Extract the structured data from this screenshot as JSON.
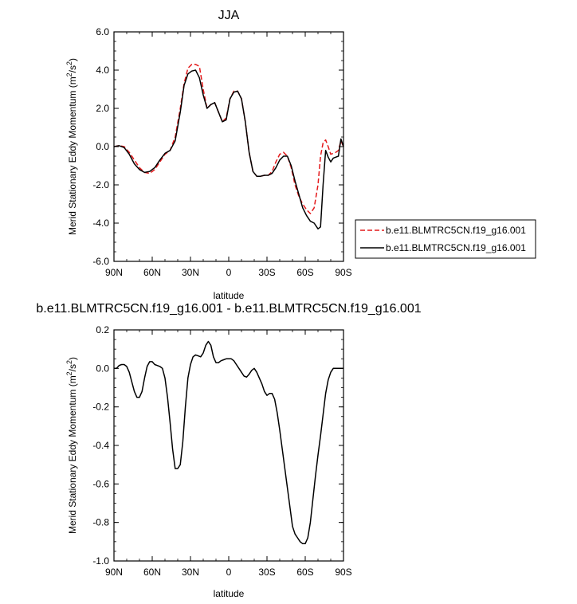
{
  "chart_data": [
    {
      "type": "line",
      "title": "JJA",
      "xlabel": "latitude",
      "ylabel": "Merid Stationary Eddy Momentum (m",
      "ylabel_sup": "2",
      "ylabel_mid": "/s",
      "ylabel_sup2": "2",
      "ylabel_end": ")",
      "xlim": [
        90,
        -90
      ],
      "ylim": [
        -6.0,
        6.0
      ],
      "x_ticks": [
        90,
        60,
        30,
        0,
        -30,
        -60,
        -90
      ],
      "x_tick_labels": [
        "90N",
        "60N",
        "30N",
        "0",
        "30S",
        "60S",
        "90S"
      ],
      "y_ticks": [
        -6.0,
        -4.0,
        -2.0,
        0.0,
        2.0,
        4.0,
        6.0
      ],
      "y_tick_labels": [
        "-6.0",
        "-4.0",
        "-2.0",
        "0.0",
        "2.0",
        "4.0",
        "6.0"
      ],
      "legend": {
        "placement": "right",
        "entries": [
          "b.e11.BLMTRC5CN.f19_g16.001",
          "b.e11.BLMTRC5CN.f19_g16.001"
        ]
      },
      "series": [
        {
          "name": "b.e11.BLMTRC5CN.f19_g16.001",
          "color": "#e41a1c",
          "dash": "dashed",
          "x": [
            90,
            86,
            82,
            78,
            74,
            70,
            66,
            62,
            58,
            54,
            50,
            46,
            42,
            38,
            35,
            32,
            29,
            26,
            23,
            20,
            17,
            14,
            11,
            8,
            5,
            2,
            -1,
            -4,
            -7,
            -10,
            -13,
            -16,
            -19,
            -22,
            -25,
            -28,
            -31,
            -34,
            -37,
            -40,
            -43,
            -46,
            -49,
            -52,
            -55,
            -58,
            -61,
            -64,
            -67,
            -70,
            -72,
            -74,
            -76,
            -78,
            -80,
            -82,
            -84,
            -86,
            -88,
            -90
          ],
          "y": [
            0.0,
            0.05,
            0.0,
            -0.3,
            -0.7,
            -1.1,
            -1.35,
            -1.4,
            -1.2,
            -0.8,
            -0.4,
            -0.2,
            0.5,
            2.0,
            3.3,
            4.1,
            4.3,
            4.3,
            4.2,
            3.0,
            2.0,
            2.2,
            2.3,
            1.8,
            1.3,
            1.5,
            2.5,
            2.9,
            2.9,
            2.5,
            1.3,
            -0.3,
            -1.3,
            -1.55,
            -1.55,
            -1.5,
            -1.5,
            -1.3,
            -0.8,
            -0.4,
            -0.3,
            -0.5,
            -1.1,
            -2.0,
            -2.6,
            -3.0,
            -3.3,
            -3.5,
            -3.2,
            -2.0,
            -0.5,
            0.2,
            0.35,
            0.0,
            -0.4,
            -0.35,
            -0.3,
            -0.2,
            0.3,
            0.0
          ]
        },
        {
          "name": "b.e11.BLMTRC5CN.f19_g16.001",
          "color": "#000000",
          "dash": "solid",
          "x": [
            90,
            86,
            82,
            78,
            74,
            70,
            66,
            62,
            58,
            54,
            50,
            46,
            42,
            38,
            35,
            32,
            29,
            26,
            23,
            20,
            17,
            14,
            11,
            8,
            5,
            2,
            -1,
            -4,
            -7,
            -10,
            -13,
            -16,
            -19,
            -22,
            -25,
            -28,
            -31,
            -34,
            -37,
            -40,
            -43,
            -46,
            -49,
            -52,
            -55,
            -58,
            -61,
            -64,
            -67,
            -70,
            -72,
            -74,
            -76,
            -78,
            -80,
            -82,
            -84,
            -86,
            -88,
            -90
          ],
          "y": [
            0.0,
            0.05,
            -0.05,
            -0.4,
            -0.9,
            -1.2,
            -1.35,
            -1.3,
            -1.1,
            -0.7,
            -0.35,
            -0.2,
            0.3,
            1.8,
            3.2,
            3.8,
            3.95,
            4.0,
            3.6,
            2.7,
            2.0,
            2.2,
            2.3,
            1.8,
            1.3,
            1.4,
            2.5,
            2.85,
            2.9,
            2.5,
            1.3,
            -0.3,
            -1.3,
            -1.55,
            -1.55,
            -1.5,
            -1.5,
            -1.4,
            -1.1,
            -0.7,
            -0.5,
            -0.5,
            -1.0,
            -1.8,
            -2.5,
            -3.2,
            -3.6,
            -3.9,
            -4.0,
            -4.3,
            -4.2,
            -2.0,
            -0.2,
            -0.55,
            -0.8,
            -0.6,
            -0.55,
            -0.5,
            0.4,
            0.0
          ]
        }
      ]
    },
    {
      "type": "line",
      "title": "b.e11.BLMTRC5CN.f19_g16.001 - b.e11.BLMTRC5CN.f19_g16.001",
      "xlabel": "latitude",
      "ylabel": "Merid Stationary Eddy Momentum (m",
      "ylabel_sup": "2",
      "ylabel_mid": "/s",
      "ylabel_sup2": "2",
      "ylabel_end": ")",
      "xlim": [
        90,
        -90
      ],
      "ylim": [
        -1.0,
        0.2
      ],
      "x_ticks": [
        90,
        60,
        30,
        0,
        -30,
        -60,
        -90
      ],
      "x_tick_labels": [
        "90N",
        "60N",
        "30N",
        "0",
        "30S",
        "60S",
        "90S"
      ],
      "y_ticks": [
        -1.0,
        -0.8,
        -0.6,
        -0.4,
        -0.2,
        0.0,
        0.2
      ],
      "y_tick_labels": [
        "-1.0",
        "-0.8",
        "-0.6",
        "-0.4",
        "-0.2",
        "0.0",
        "0.2"
      ],
      "series": [
        {
          "color": "#000000",
          "dash": "solid",
          "x": [
            90,
            88,
            86,
            84,
            82,
            80,
            78,
            76,
            74,
            72,
            70,
            68,
            66,
            64,
            62,
            60,
            58,
            56,
            54,
            52,
            50,
            48,
            46,
            44,
            42,
            40,
            38,
            36,
            34,
            32,
            30,
            28,
            26,
            24,
            22,
            20,
            18,
            16,
            14,
            12,
            10,
            8,
            6,
            4,
            2,
            0,
            -2,
            -4,
            -6,
            -8,
            -10,
            -12,
            -14,
            -16,
            -18,
            -20,
            -22,
            -24,
            -26,
            -28,
            -30,
            -32,
            -34,
            -36,
            -38,
            -40,
            -42,
            -44,
            -46,
            -48,
            -50,
            -52,
            -54,
            -56,
            -58,
            -60,
            -62,
            -64,
            -66,
            -68,
            -70,
            -72,
            -74,
            -76,
            -78,
            -80,
            -82,
            -84,
            -86,
            -88,
            -90
          ],
          "y": [
            0.0,
            0.0,
            0.015,
            0.02,
            0.02,
            0.01,
            -0.02,
            -0.07,
            -0.12,
            -0.15,
            -0.15,
            -0.12,
            -0.05,
            0.01,
            0.035,
            0.035,
            0.02,
            0.015,
            0.01,
            0.0,
            -0.05,
            -0.15,
            -0.28,
            -0.42,
            -0.52,
            -0.52,
            -0.5,
            -0.38,
            -0.2,
            -0.05,
            0.02,
            0.06,
            0.07,
            0.065,
            0.06,
            0.08,
            0.12,
            0.14,
            0.12,
            0.06,
            0.03,
            0.03,
            0.04,
            0.045,
            0.05,
            0.05,
            0.05,
            0.04,
            0.02,
            0.0,
            -0.02,
            -0.04,
            -0.045,
            -0.03,
            -0.01,
            0.0,
            -0.02,
            -0.05,
            -0.08,
            -0.12,
            -0.14,
            -0.13,
            -0.13,
            -0.16,
            -0.23,
            -0.32,
            -0.42,
            -0.52,
            -0.62,
            -0.72,
            -0.82,
            -0.86,
            -0.88,
            -0.9,
            -0.91,
            -0.91,
            -0.88,
            -0.8,
            -0.68,
            -0.56,
            -0.45,
            -0.35,
            -0.24,
            -0.13,
            -0.06,
            -0.02,
            0.0,
            0.0,
            0.0,
            0.0,
            0.0
          ]
        }
      ]
    }
  ]
}
